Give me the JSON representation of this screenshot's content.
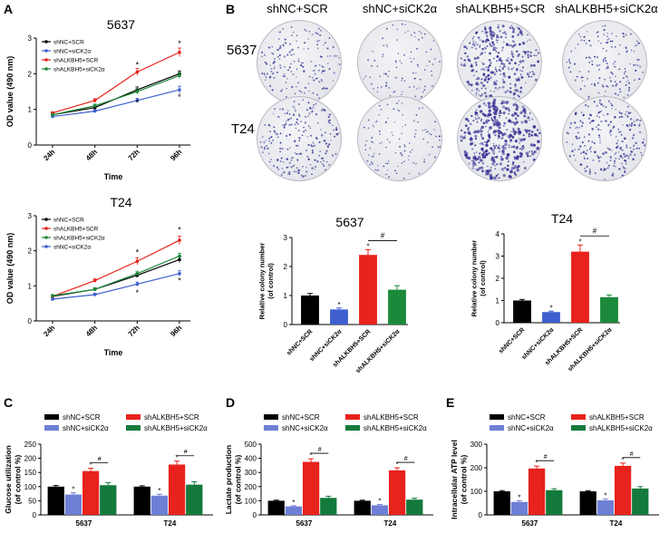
{
  "panel_labels": {
    "A": "A",
    "B": "B",
    "C": "C",
    "D": "D",
    "E": "E"
  },
  "panelB": {
    "columns": [
      "shNC+SCR",
      "shNC+siCK2α",
      "shALKBH5+SCR",
      "shALKBH5+siCK2α"
    ],
    "rows": [
      "5637",
      "T24"
    ],
    "dish_density": [
      [
        0.35,
        0.15,
        0.75,
        0.3
      ],
      [
        0.45,
        0.2,
        1.0,
        0.5
      ]
    ]
  },
  "colors": {
    "black": "#000000",
    "blue": "#3f5fcf",
    "red": "#e8221c",
    "green": "#1a8a3a",
    "periwinkle": "#6f7fd6",
    "dark_green": "#137a3b",
    "colony": "#3c3596"
  },
  "chart_data": [
    {
      "id": "A1",
      "type": "line",
      "title": "5637",
      "xlabel": "Time",
      "ylabel": "OD value (490 nm)",
      "categories": [
        "24h",
        "48h",
        "72h",
        "96h"
      ],
      "ylim": [
        0,
        3
      ],
      "yticks": [
        0,
        1,
        2,
        3
      ],
      "series": [
        {
          "name": "shNC+SCR",
          "color": "#000000",
          "values": [
            0.85,
            1.05,
            1.55,
            2.0
          ],
          "errors": [
            0.03,
            0.05,
            0.08,
            0.08
          ]
        },
        {
          "name": "shNC+siCK2α",
          "color": "#3f5fcf",
          "values": [
            0.8,
            0.95,
            1.25,
            1.55
          ],
          "errors": [
            0.03,
            0.04,
            0.06,
            0.1
          ]
        },
        {
          "name": "shALKBH5+SCR",
          "color": "#e8221c",
          "values": [
            0.9,
            1.25,
            2.05,
            2.6
          ],
          "errors": [
            0.03,
            0.05,
            0.1,
            0.12
          ]
        },
        {
          "name": "shALKBH5+siCK2α",
          "color": "#1a8a3a",
          "values": [
            0.85,
            1.1,
            1.5,
            1.95
          ],
          "errors": [
            0.03,
            0.05,
            0.08,
            0.08
          ]
        }
      ],
      "annotations": [
        {
          "x": "72h",
          "y": 2.25,
          "text": "*"
        },
        {
          "x": "72h",
          "y": 1.2,
          "text": "*"
        },
        {
          "x": "96h",
          "y": 2.85,
          "text": "*"
        },
        {
          "x": "96h",
          "y": 1.35,
          "text": "*"
        }
      ],
      "legend_position": "top-left"
    },
    {
      "id": "A2",
      "type": "line",
      "title": "T24",
      "xlabel": "Time",
      "ylabel": "OD value (490 nm)",
      "categories": [
        "24h",
        "48h",
        "72h",
        "96h"
      ],
      "ylim": [
        0,
        3
      ],
      "yticks": [
        0,
        1,
        2,
        3
      ],
      "series": [
        {
          "name": "shNC+SCR",
          "color": "#000000",
          "values": [
            0.7,
            0.9,
            1.3,
            1.75
          ],
          "errors": [
            0.03,
            0.04,
            0.06,
            0.08
          ]
        },
        {
          "name": "shALKBH5+SCR",
          "color": "#e8221c",
          "values": [
            0.7,
            1.15,
            1.7,
            2.3
          ],
          "errors": [
            0.03,
            0.05,
            0.1,
            0.12
          ]
        },
        {
          "name": "shALKBH5+siCK2α",
          "color": "#1a8a3a",
          "values": [
            0.72,
            0.9,
            1.35,
            1.85
          ],
          "errors": [
            0.03,
            0.04,
            0.07,
            0.08
          ]
        },
        {
          "name": "shNC+siCK2α",
          "color": "#3f5fcf",
          "values": [
            0.62,
            0.75,
            1.05,
            1.35
          ],
          "errors": [
            0.03,
            0.04,
            0.06,
            0.08
          ]
        }
      ],
      "annotations": [
        {
          "x": "72h",
          "y": 1.95,
          "text": "*"
        },
        {
          "x": "72h",
          "y": 0.8,
          "text": "*"
        },
        {
          "x": "96h",
          "y": 2.6,
          "text": "*"
        },
        {
          "x": "96h",
          "y": 1.15,
          "text": "*"
        }
      ],
      "legend_position": "top-left"
    },
    {
      "id": "B1",
      "type": "bar",
      "title": "5637",
      "ylabel": "Relative colony number\n(of control)",
      "categories": [
        "shNC+SCR",
        "shNC+siCK2α",
        "shALKBH5+SCR",
        "shALKBH5+siCK2α"
      ],
      "values": [
        1.0,
        0.52,
        2.4,
        1.2
      ],
      "errors": [
        0.07,
        0.05,
        0.18,
        0.14
      ],
      "colors": [
        "#000000",
        "#3f5fcf",
        "#e8221c",
        "#1a8a3a"
      ],
      "ylim": [
        0,
        3
      ],
      "yticks": [
        0,
        1,
        2,
        3
      ],
      "stars": [
        {
          "index": 1,
          "text": "*"
        },
        {
          "index": 2,
          "text": "*"
        }
      ],
      "bracket": {
        "from": 2,
        "to": 3,
        "text": "#"
      }
    },
    {
      "id": "B2",
      "type": "bar",
      "title": "T24",
      "ylabel": "Relative colony number\n(of control)",
      "categories": [
        "shNC+SCR",
        "shNC+siCK2α",
        "shALKBH5+SCR",
        "shALKBH5+siCK2α"
      ],
      "values": [
        1.0,
        0.48,
        3.2,
        1.15
      ],
      "errors": [
        0.05,
        0.04,
        0.3,
        0.1
      ],
      "colors": [
        "#000000",
        "#3f5fcf",
        "#e8221c",
        "#1a8a3a"
      ],
      "ylim": [
        0,
        4
      ],
      "yticks": [
        0,
        1,
        2,
        3,
        4
      ],
      "stars": [
        {
          "index": 1,
          "text": "*"
        },
        {
          "index": 2,
          "text": "*"
        }
      ],
      "bracket": {
        "from": 2,
        "to": 3,
        "text": "#"
      }
    },
    {
      "id": "C",
      "type": "bar",
      "ylabel": "Glucose utilization\n(of control %)",
      "groups": [
        "5637",
        "T24"
      ],
      "series": [
        {
          "name": "shNC+SCR",
          "color": "#000000",
          "values": [
            100,
            100
          ],
          "errors": [
            4,
            3
          ]
        },
        {
          "name": "shNC+siCK2α",
          "color": "#6f7fd6",
          "values": [
            72,
            68
          ],
          "errors": [
            6,
            5
          ]
        },
        {
          "name": "shALKBH5+SCR",
          "color": "#e8221c",
          "values": [
            155,
            178
          ],
          "errors": [
            10,
            12
          ]
        },
        {
          "name": "shALKBH5+siCK2α",
          "color": "#137a3b",
          "values": [
            105,
            107
          ],
          "errors": [
            9,
            10
          ]
        }
      ],
      "ylim": [
        0,
        250
      ],
      "yticks": [
        0,
        50,
        100,
        150,
        200,
        250
      ],
      "legend_position": "top"
    },
    {
      "id": "D",
      "type": "bar",
      "ylabel": "Lactate production\n(of control %)",
      "groups": [
        "5637",
        "T24"
      ],
      "series": [
        {
          "name": "shNC+SCR",
          "color": "#000000",
          "values": [
            100,
            100
          ],
          "errors": [
            4,
            4
          ]
        },
        {
          "name": "shNC+siCK2α",
          "color": "#6f7fd6",
          "values": [
            60,
            68
          ],
          "errors": [
            5,
            6
          ]
        },
        {
          "name": "shALKBH5+SCR",
          "color": "#e8221c",
          "values": [
            375,
            315
          ],
          "errors": [
            22,
            18
          ]
        },
        {
          "name": "shALKBH5+siCK2α",
          "color": "#137a3b",
          "values": [
            120,
            108
          ],
          "errors": [
            12,
            10
          ]
        }
      ],
      "ylim": [
        0,
        500
      ],
      "yticks": [
        0,
        100,
        200,
        300,
        400,
        500
      ],
      "legend_position": "top"
    },
    {
      "id": "E",
      "type": "bar",
      "ylabel": "Intracellular ATP level\n(of control %)",
      "groups": [
        "5637",
        "T24"
      ],
      "series": [
        {
          "name": "shNC+SCR",
          "color": "#000000",
          "values": [
            100,
            100
          ],
          "errors": [
            3,
            3
          ]
        },
        {
          "name": "shNC+siCK2α",
          "color": "#6f7fd6",
          "values": [
            55,
            62
          ],
          "errors": [
            5,
            6
          ]
        },
        {
          "name": "shALKBH5+SCR",
          "color": "#e8221c",
          "values": [
            197,
            208
          ],
          "errors": [
            10,
            12
          ]
        },
        {
          "name": "shALKBH5+siCK2α",
          "color": "#137a3b",
          "values": [
            105,
            112
          ],
          "errors": [
            6,
            8
          ]
        }
      ],
      "ylim": [
        0,
        300
      ],
      "yticks": [
        0,
        100,
        200,
        300
      ],
      "legend_position": "top"
    }
  ]
}
